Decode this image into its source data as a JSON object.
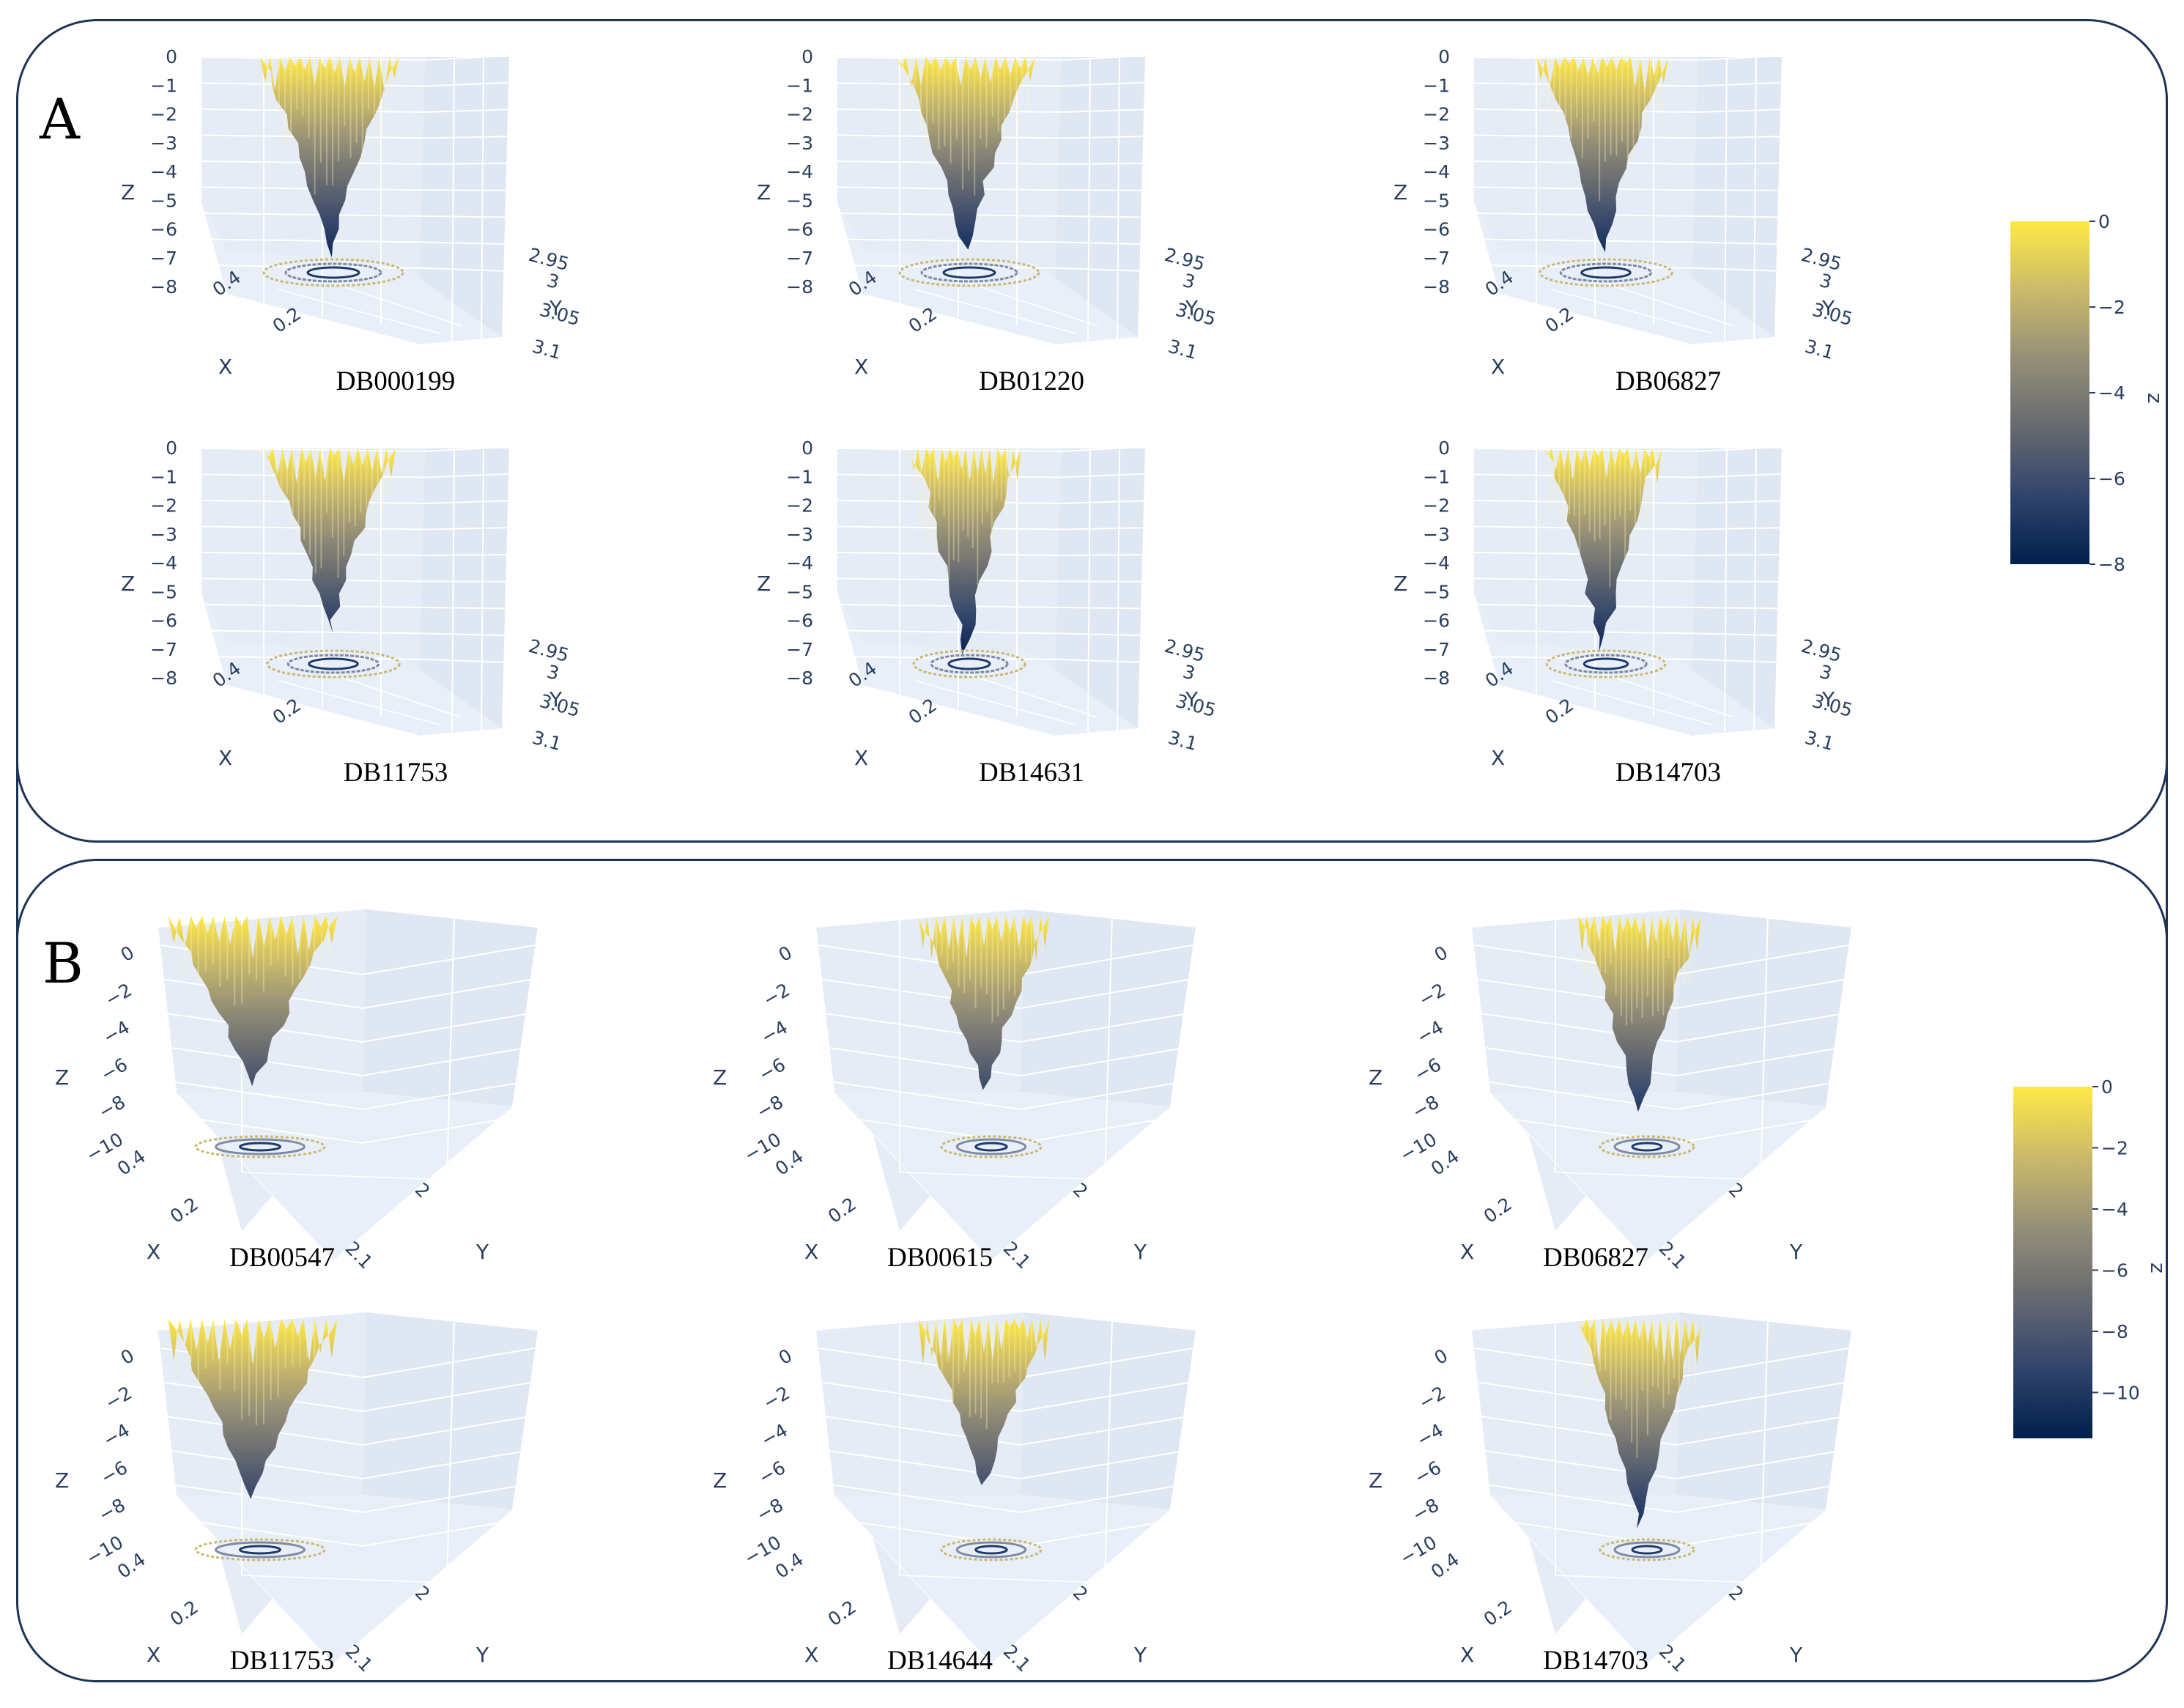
{
  "figure": {
    "panel_a_label": "A",
    "panel_b_label": "B"
  },
  "chart_data": [
    {
      "panel": "A",
      "type": "surface3d",
      "axis_labels": {
        "x": "X",
        "y": "Y",
        "z": "Z"
      },
      "z_ticks": [
        "0",
        "−1",
        "−2",
        "−3",
        "−4",
        "−5",
        "−6",
        "−7",
        "−8"
      ],
      "zlim": [
        -8,
        0
      ],
      "x_ticks": [
        "0.4",
        "0.2"
      ],
      "y_ticks": [
        "2.95",
        "3",
        "3.05",
        "3.1"
      ],
      "colorbar": {
        "title": "z",
        "ticks": [
          "0",
          "−2",
          "−4",
          "−6",
          "−8"
        ],
        "range": [
          -8,
          0
        ]
      },
      "colorscale": [
        "#00204c",
        "#31446b",
        "#666970",
        "#958f78",
        "#cbba69",
        "#ffe945"
      ],
      "plots": [
        {
          "title": "DB000199",
          "min_z": -7.6,
          "width_factor": 1.0
        },
        {
          "title": "DB01220",
          "min_z": -7.3,
          "width_factor": 1.0
        },
        {
          "title": "DB06827",
          "min_z": -7.4,
          "width_factor": 0.95
        },
        {
          "title": "DB11753",
          "min_z": -7.0,
          "width_factor": 0.95
        },
        {
          "title": "DB14631",
          "min_z": -7.8,
          "width_factor": 0.8
        },
        {
          "title": "DB14703",
          "min_z": -7.7,
          "width_factor": 0.85
        }
      ]
    },
    {
      "panel": "B",
      "type": "surface3d",
      "axis_labels": {
        "x": "X",
        "y": "Y",
        "z": "Z"
      },
      "z_ticks": [
        "0",
        "−2",
        "−4",
        "−6",
        "−8",
        "−10"
      ],
      "zlim": [
        -10,
        0
      ],
      "x_ticks": [
        "0.4",
        "0.2"
      ],
      "y_ticks": [
        "2",
        "2.1"
      ],
      "colorbar": {
        "title": "z",
        "ticks": [
          "0",
          "−2",
          "−4",
          "−6",
          "−8",
          "−10"
        ],
        "range": [
          -11.5,
          0
        ]
      },
      "colorscale": [
        "#00204c",
        "#31446b",
        "#666970",
        "#958f78",
        "#cbba69",
        "#ffe945"
      ],
      "plots": [
        {
          "title": "DB00547",
          "min_z": -8.6,
          "width_factor": 1.1
        },
        {
          "title": "DB00615",
          "min_z": -8.8,
          "width_factor": 0.85
        },
        {
          "title": "DB06827",
          "min_z": -9.9,
          "width_factor": 0.8
        },
        {
          "title": "DB11753",
          "min_z": -9.1,
          "width_factor": 1.1
        },
        {
          "title": "DB14644",
          "min_z": -8.4,
          "width_factor": 0.85
        },
        {
          "title": "DB14703",
          "min_z": -10.6,
          "width_factor": 0.8
        }
      ]
    }
  ]
}
